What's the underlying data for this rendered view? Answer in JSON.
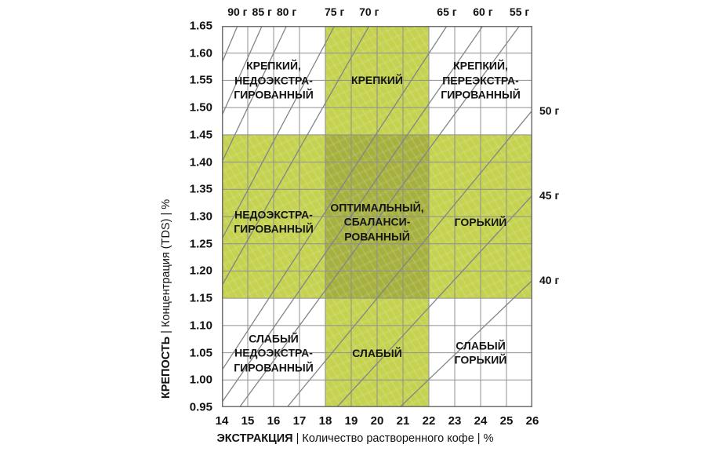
{
  "chart_data": {
    "type": "line",
    "subtype": "coffee-brewing-control-chart",
    "x_axis": {
      "label_bold": "ЭКСТРАКЦИЯ",
      "label_rest": " | Количество растворенного кофе  | %",
      "min": 14,
      "max": 26,
      "ticks": [
        14,
        15,
        16,
        17,
        18,
        19,
        20,
        21,
        22,
        23,
        24,
        25,
        26
      ]
    },
    "y_axis": {
      "label_bold": "КРЕПОСТЬ",
      "label_rest": " | Концентрация (TDS) | %",
      "min": 0.95,
      "max": 1.65,
      "step": 0.05,
      "ticks": [
        "0.95",
        "1.00",
        "1.05",
        "1.10",
        "1.15",
        "1.20",
        "1.25",
        "1.30",
        "1.35",
        "1.40",
        "1.45",
        "1.50",
        "1.55",
        "1.60",
        "1.65"
      ]
    },
    "dose_lines": [
      {
        "label": "90 г",
        "dose_g": 90,
        "slope": 0.113,
        "label_edge": "top"
      },
      {
        "label": "85 г",
        "dose_g": 85,
        "slope": 0.1061,
        "label_edge": "top"
      },
      {
        "label": "80 г",
        "dose_g": 80,
        "slope": 0.1,
        "label_edge": "top"
      },
      {
        "label": "75 г",
        "dose_g": 75,
        "slope": 0.0899,
        "label_edge": "top"
      },
      {
        "label": "70 г",
        "dose_g": 70,
        "slope": 0.0838,
        "label_edge": "top"
      },
      {
        "label": "65 г",
        "dose_g": 65,
        "slope": 0.0727,
        "label_edge": "top"
      },
      {
        "label": "60 г",
        "dose_g": 60,
        "slope": 0.0685,
        "label_edge": "top"
      },
      {
        "label": "55 г",
        "dose_g": 55,
        "slope": 0.0647,
        "label_edge": "top"
      },
      {
        "label": "50 г",
        "dose_g": 50,
        "slope": 0.0575,
        "label_edge": "right"
      },
      {
        "label": "45 г",
        "dose_g": 45,
        "slope": 0.0515,
        "label_edge": "right"
      },
      {
        "label": "40 г",
        "dose_g": 40,
        "slope": 0.0455,
        "label_edge": "right"
      }
    ],
    "bands": {
      "vertical": {
        "x_min": 18,
        "x_max": 22
      },
      "horizontal": {
        "y_min": 1.15,
        "y_max": 1.45
      },
      "band_color": "#c5d24f",
      "overlap_color": "#a6b03f"
    },
    "zones": [
      {
        "id": "strong-underextracted",
        "label": "КРЕПКИЙ,\nНЕДОЭКСТРА-\nГИРОВАННЫЙ",
        "x": 16,
        "y": 1.55
      },
      {
        "id": "strong",
        "label": "КРЕПКИЙ",
        "x": 20,
        "y": 1.55
      },
      {
        "id": "strong-overextracted",
        "label": "КРЕПКИЙ,\nПЕРЕЭКСТРА-\nГИРОВАННЫЙ",
        "x": 24,
        "y": 1.55
      },
      {
        "id": "underextracted",
        "label": "НЕДОЭКСТРА-\nГИРОВАННЫЙ",
        "x": 16,
        "y": 1.29
      },
      {
        "id": "optimal-balanced",
        "label": "ОПТИМАЛЬНЫЙ,\nСБАЛАНСИ-\nРОВАННЫЙ",
        "x": 20,
        "y": 1.29
      },
      {
        "id": "bitter",
        "label": "ГОРЬКИЙ",
        "x": 24,
        "y": 1.29
      },
      {
        "id": "weak-underextracted",
        "label": "СЛАБЫЙ\nНЕДОЭКСТРА-\nГИРОВАННЫЙ",
        "x": 16,
        "y": 1.05
      },
      {
        "id": "weak",
        "label": "СЛАБЫЙ",
        "x": 20,
        "y": 1.05
      },
      {
        "id": "weak-bitter",
        "label": "СЛАБЫЙ\nГОРЬКИЙ",
        "x": 24,
        "y": 1.05
      }
    ],
    "colors": {
      "grid": "#8f8f8f",
      "dose_line": "#7e868a",
      "frame": "#707070",
      "text": "#121212"
    }
  }
}
